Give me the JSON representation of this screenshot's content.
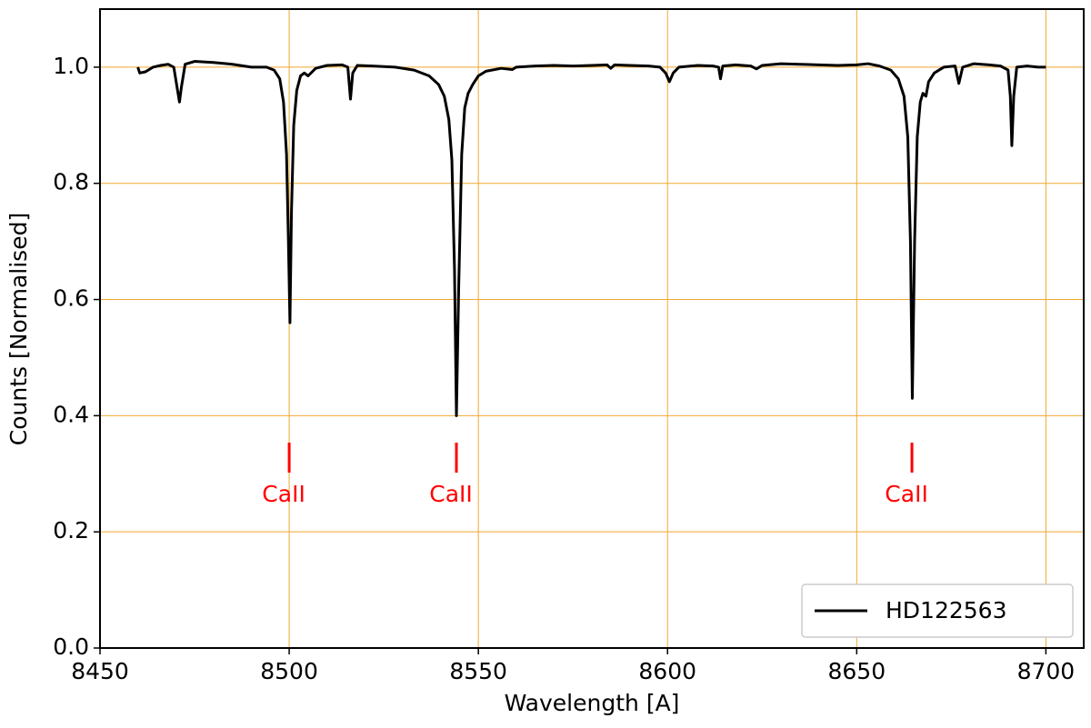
{
  "chart_data": {
    "type": "line",
    "xlabel": "Wavelength [A]",
    "ylabel": "Counts [Normalised]",
    "xlim": [
      8450,
      8710
    ],
    "ylim": [
      0,
      1.1
    ],
    "xticks": [
      8450,
      8500,
      8550,
      8600,
      8650,
      8700
    ],
    "yticks": [
      {
        "value": 0,
        "label": "0.0"
      },
      {
        "value": 0.2,
        "label": "0.2"
      },
      {
        "value": 0.4,
        "label": "0.4"
      },
      {
        "value": 0.6,
        "label": "0.6"
      },
      {
        "value": 0.8,
        "label": "0.8"
      },
      {
        "value": 1,
        "label": "1.0"
      }
    ],
    "grid": true,
    "grid_color": "#f0a830",
    "legend": "lower right",
    "x": [
      8460,
      8460.5,
      8462,
      8464,
      8466,
      8468,
      8469.5,
      8470.5,
      8471,
      8471.5,
      8472.5,
      8475,
      8480,
      8485,
      8490,
      8494,
      8496,
      8497.5,
      8498.5,
      8499.3,
      8499.8,
      8500.2,
      8500.6,
      8501.2,
      8502,
      8503,
      8504,
      8505,
      8507,
      8510,
      8514,
      8515.5,
      8516.2,
      8516.8,
      8518,
      8522,
      8528,
      8533,
      8537,
      8539.5,
      8541,
      8542.2,
      8543,
      8543.7,
      8544.2,
      8544.8,
      8545.6,
      8546.4,
      8547.3,
      8548.5,
      8550,
      8552,
      8556,
      8559,
      8560,
      8565,
      8570,
      8575,
      8580,
      8584,
      8585,
      8586,
      8590,
      8595,
      8598,
      8599.5,
      8600.5,
      8601.5,
      8603,
      8608,
      8612,
      8613.5,
      8614,
      8614.6,
      8618,
      8622,
      8623.5,
      8625,
      8630,
      8635,
      8640,
      8645,
      8650,
      8653,
      8656,
      8659,
      8661,
      8662.5,
      8663.5,
      8664.2,
      8664.7,
      8665.3,
      8666,
      8666.8,
      8667.5,
      8668.3,
      8669,
      8670.5,
      8673,
      8676,
      8677,
      8678,
      8681,
      8685,
      8688,
      8690,
      8690.6,
      8691,
      8691.5,
      8692.3,
      8695,
      8698,
      8700
    ],
    "series": [
      {
        "name": "HD122563",
        "color": "#000000",
        "values": [
          1.0,
          0.99,
          0.992,
          1.0,
          1.003,
          1.005,
          1.0,
          0.96,
          0.94,
          0.965,
          1.005,
          1.01,
          1.008,
          1.005,
          1.0,
          1.0,
          0.995,
          0.98,
          0.94,
          0.85,
          0.7,
          0.56,
          0.75,
          0.9,
          0.96,
          0.985,
          0.99,
          0.985,
          0.998,
          1.003,
          1.004,
          1.0,
          0.945,
          0.99,
          1.003,
          1.002,
          1.0,
          0.995,
          0.985,
          0.97,
          0.95,
          0.91,
          0.84,
          0.65,
          0.4,
          0.62,
          0.85,
          0.93,
          0.955,
          0.97,
          0.985,
          0.993,
          0.998,
          0.996,
          1.0,
          1.002,
          1.003,
          1.002,
          1.003,
          1.004,
          0.998,
          1.004,
          1.003,
          1.002,
          1.0,
          0.99,
          0.975,
          0.99,
          1.0,
          1.003,
          1.002,
          1.0,
          0.98,
          1.002,
          1.004,
          1.002,
          0.997,
          1.003,
          1.006,
          1.005,
          1.004,
          1.003,
          1.004,
          1.006,
          1.002,
          0.995,
          0.98,
          0.95,
          0.88,
          0.7,
          0.43,
          0.7,
          0.88,
          0.94,
          0.955,
          0.95,
          0.975,
          0.99,
          1.0,
          1.002,
          0.972,
          1.0,
          1.006,
          1.004,
          1.002,
          0.995,
          0.95,
          0.865,
          0.95,
          1.0,
          1.002,
          1.0,
          1.0
        ]
      }
    ],
    "annotations": [
      {
        "text": "CaII",
        "x": 8500,
        "color": "#ff0000"
      },
      {
        "text": "CaII",
        "x": 8544.2,
        "color": "#ff0000"
      },
      {
        "text": "CaII",
        "x": 8664.6,
        "color": "#ff0000"
      }
    ]
  }
}
